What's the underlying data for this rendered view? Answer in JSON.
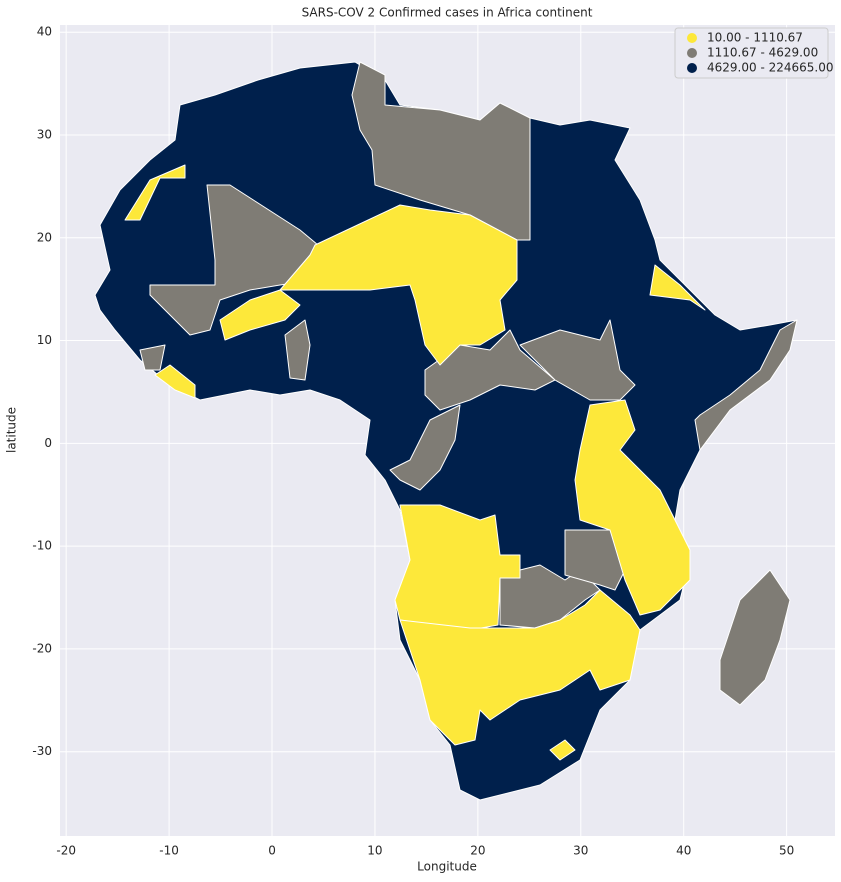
{
  "chart_data": {
    "type": "map",
    "title": "SARS-COV 2 Confirmed cases in Africa continent",
    "x_label": "Longitude",
    "y_label": "latitude",
    "xlim": [
      -20.6,
      54.7
    ],
    "ylim": [
      -38.2,
      40.7
    ],
    "xticks": [
      -20,
      -10,
      0,
      10,
      20,
      30,
      40,
      50
    ],
    "yticks": [
      -30,
      -20,
      -10,
      0,
      10,
      20,
      30,
      40
    ],
    "grid": true,
    "legend_position": "upper right",
    "series": [
      {
        "name": "10.00 - 1110.67",
        "color": "#fde83a"
      },
      {
        "name": "1110.67 - 4629.00",
        "color": "#7f7c75"
      },
      {
        "name": "4629.00 - 224665.00",
        "color": "#00204c"
      }
    ]
  }
}
